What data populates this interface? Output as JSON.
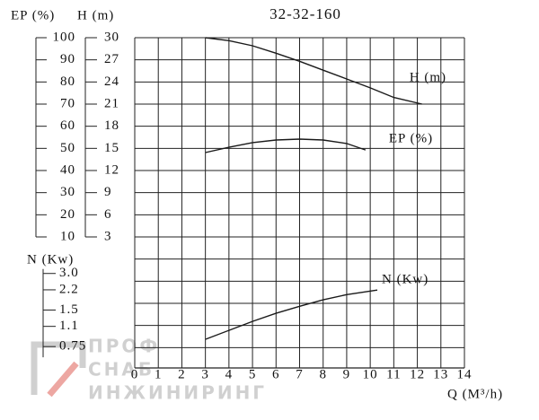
{
  "chart_data": {
    "type": "line",
    "title": "32-32-160",
    "x_label": "Q (M³/h)",
    "xlim": [
      0,
      14
    ],
    "xticks": [
      0,
      1,
      2,
      3,
      4,
      5,
      6,
      7,
      8,
      9,
      10,
      11,
      12,
      13,
      14
    ],
    "y_label": "H (m)",
    "ylim": [
      3,
      30
    ],
    "yticks": [
      3,
      6,
      9,
      12,
      15,
      18,
      21,
      24,
      27,
      30
    ],
    "y2_label": "EP (%)",
    "y2lim": [
      10,
      100
    ],
    "y2ticks": [
      10,
      20,
      30,
      40,
      50,
      60,
      70,
      80,
      90,
      100
    ],
    "y3_label": "N (Kw)",
    "y3lim": [
      0.5,
      6
    ],
    "y3_log": true,
    "y3ticks": [
      0.75,
      1.1,
      1.5,
      2.2,
      {
        "value": 3,
        "label": "3.0"
      }
    ],
    "grid": true,
    "series": [
      {
        "name": "H (m)",
        "color": "#1a1a1a",
        "axis": "y",
        "x": [
          3,
          4,
          5,
          6,
          7,
          8,
          9,
          10,
          11,
          12.2
        ],
        "values": [
          30,
          29.6,
          28.9,
          27.9,
          26.8,
          25.6,
          24.4,
          23.2,
          21.9,
          21
        ]
      },
      {
        "name": "EP (%)",
        "color": "#1a1a1a",
        "axis": "y2",
        "x": [
          3,
          4,
          5,
          6,
          7,
          8,
          9,
          9.8
        ],
        "values": [
          48.1,
          50.5,
          52.6,
          53.8,
          54.2,
          53.8,
          52.2,
          49.3
        ]
      },
      {
        "name": "N (Kw)",
        "color": "#1a1a1a",
        "axis": "y3",
        "x": [
          3,
          4,
          5,
          6,
          7,
          8,
          9,
          10.3
        ],
        "values": [
          0.86,
          1.02,
          1.21,
          1.41,
          1.61,
          1.82,
          2.01,
          2.19
        ]
      }
    ]
  },
  "watermark": {
    "lines": [
      "ПРОФ",
      "СНАБ",
      "ИНЖИНИРИНГ"
    ]
  }
}
